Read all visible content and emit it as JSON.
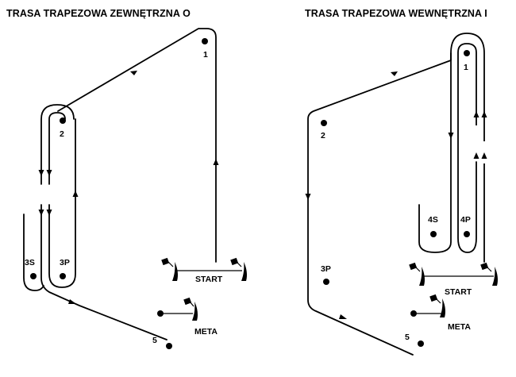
{
  "titles": {
    "left": "TRASA TRAPEZOWA ZEWNĘTRZNA O",
    "right": "TRASA TRAPEZOWA WEWNĘTRZNA I"
  },
  "left": {
    "marks": {
      "m1": "1",
      "m2": "2",
      "m3s": "3S",
      "m3p": "3P",
      "m5": "5"
    },
    "start": "START",
    "finish": "META"
  },
  "right": {
    "marks": {
      "m1": "1",
      "m2": "2",
      "m3p": "3P",
      "m4s": "4S",
      "m4p": "4P",
      "m5": "5"
    },
    "start": "START",
    "finish": "META"
  }
}
